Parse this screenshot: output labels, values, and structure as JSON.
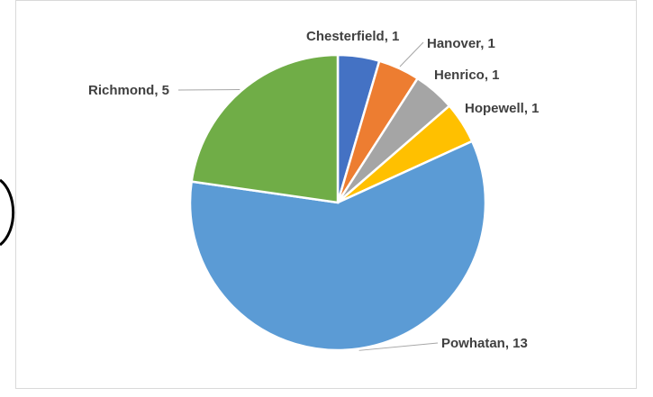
{
  "chart_data": {
    "type": "pie",
    "title": "",
    "slices": [
      {
        "label": "Chesterfield",
        "value": 1,
        "color": "#4472c4"
      },
      {
        "label": "Hanover",
        "value": 1,
        "color": "#ed7d31"
      },
      {
        "label": "Henrico",
        "value": 1,
        "color": "#a5a5a5"
      },
      {
        "label": "Hopewell",
        "value": 1,
        "color": "#ffc000"
      },
      {
        "label": "Powhatan",
        "value": 13,
        "color": "#5b9bd5"
      },
      {
        "label": "Richmond",
        "value": 5,
        "color": "#70ad47"
      }
    ],
    "data_labels": [
      "Chesterfield, 1",
      "Hanover, 1",
      "Henrico, 1",
      "Hopewell, 1",
      "Powhatan, 13",
      "Richmond, 5"
    ],
    "legend": "none",
    "start_angle": "12 o'clock",
    "direction": "clockwise"
  }
}
